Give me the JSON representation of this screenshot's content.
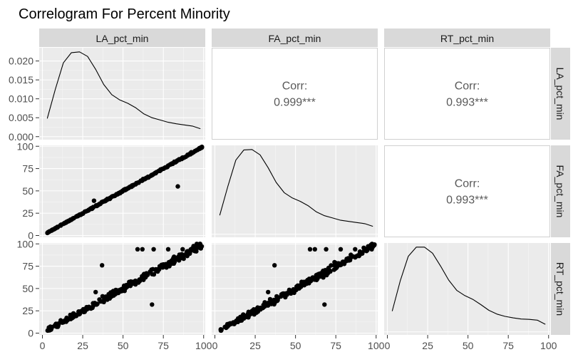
{
  "chart_data": {
    "type": "pairs",
    "title": "Correlogram For Percent Minority",
    "variables": [
      "LA_pct_min",
      "FA_pct_min",
      "RT_pct_min"
    ],
    "corr_label": "Corr:",
    "correlations": [
      {
        "row": 0,
        "col": 1,
        "value": "0.999***"
      },
      {
        "row": 0,
        "col": 2,
        "value": "0.993***"
      },
      {
        "row": 1,
        "col": 2,
        "value": "0.993***"
      }
    ],
    "x_ticks": [
      {
        "values": [
          0,
          25,
          50,
          75,
          100
        ],
        "labels": [
          "0",
          "25",
          "50",
          "75",
          "100"
        ]
      },
      {
        "values": [
          0,
          25,
          50,
          75,
          100
        ],
        "labels": [
          "0",
          "25",
          "50",
          "75",
          "100"
        ]
      },
      {
        "values": [
          0,
          25,
          50,
          75,
          100
        ],
        "labels": [
          "0",
          "25",
          "50",
          "75",
          "100"
        ]
      }
    ],
    "y_ticks": [
      {
        "values": [
          0,
          0.005,
          0.01,
          0.015,
          0.02
        ],
        "labels": [
          "0.000",
          "0.005",
          "0.010",
          "0.015",
          "0.020"
        ]
      },
      {
        "values": [
          0,
          25,
          50,
          75,
          100
        ],
        "labels": [
          "0",
          "25",
          "50",
          "75",
          "100"
        ]
      },
      {
        "values": [
          0,
          25,
          50,
          75,
          100
        ],
        "labels": [
          "0",
          "25",
          "50",
          "75",
          "100"
        ]
      }
    ],
    "xlim": [
      -2,
      101
    ],
    "density_ylim": [
      -0.0008,
      0.0235
    ],
    "scatter_ylim": [
      -2,
      101
    ],
    "density_curves": [
      {
        "x": [
          3,
          8,
          13,
          18,
          23,
          28,
          33,
          38,
          43,
          48,
          53,
          58,
          63,
          68,
          73,
          78,
          83,
          88,
          93,
          98
        ],
        "y": [
          0.0048,
          0.0125,
          0.0195,
          0.0222,
          0.0224,
          0.0212,
          0.0178,
          0.0138,
          0.0111,
          0.0097,
          0.0088,
          0.0076,
          0.006,
          0.005,
          0.0044,
          0.0038,
          0.0034,
          0.0031,
          0.0028,
          0.0021
        ]
      },
      {
        "x": [
          3,
          8,
          13,
          18,
          23,
          28,
          33,
          38,
          43,
          48,
          53,
          58,
          63,
          68,
          73,
          78,
          83,
          88,
          93,
          98
        ],
        "y": [
          0.005,
          0.0126,
          0.0196,
          0.0223,
          0.0224,
          0.021,
          0.0176,
          0.0137,
          0.011,
          0.0096,
          0.0087,
          0.0075,
          0.0059,
          0.0049,
          0.0043,
          0.0037,
          0.0034,
          0.0031,
          0.0028,
          0.0021
        ]
      },
      {
        "x": [
          3,
          8,
          13,
          18,
          23,
          28,
          33,
          38,
          43,
          48,
          53,
          58,
          63,
          68,
          73,
          78,
          83,
          88,
          93,
          98
        ],
        "y": [
          0.0055,
          0.0135,
          0.02,
          0.0224,
          0.0224,
          0.0208,
          0.0174,
          0.0137,
          0.011,
          0.0096,
          0.0086,
          0.0072,
          0.0057,
          0.0047,
          0.0041,
          0.0037,
          0.0034,
          0.0033,
          0.0031,
          0.002
        ]
      }
    ],
    "outliers": {
      "FA_vs_LA": [
        [
          32,
          39
        ],
        [
          84,
          55
        ]
      ],
      "RT_vs_LA": [
        [
          59,
          94
        ],
        [
          62,
          94
        ],
        [
          37,
          76
        ],
        [
          69,
          94
        ],
        [
          78,
          94
        ],
        [
          87,
          94
        ],
        [
          68,
          32
        ],
        [
          33,
          46
        ]
      ],
      "RT_vs_FA": [
        [
          59,
          94
        ],
        [
          62,
          94
        ],
        [
          37,
          76
        ],
        [
          69,
          94
        ],
        [
          78,
          94
        ],
        [
          87,
          94
        ],
        [
          68,
          32
        ],
        [
          33,
          46
        ]
      ]
    },
    "grid": true
  }
}
